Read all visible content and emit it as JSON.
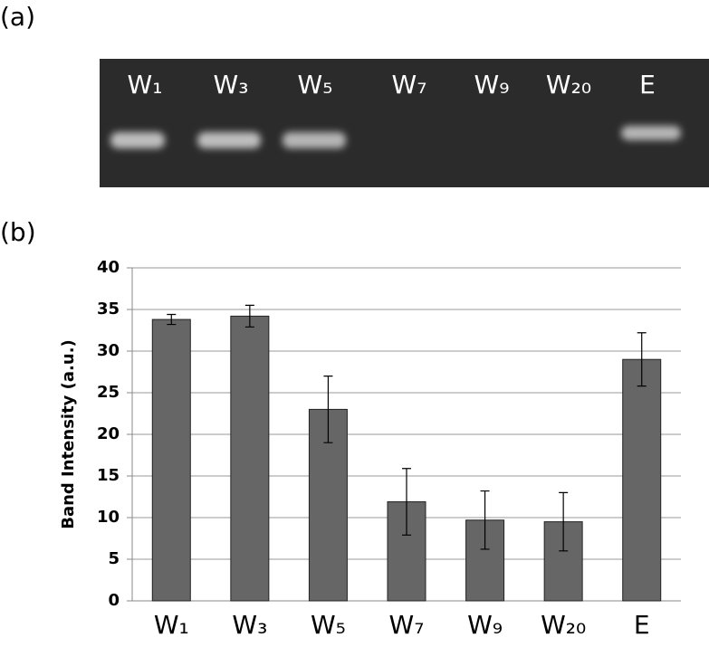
{
  "panel_labels": [
    "(a)",
    "(b)"
  ],
  "gel": {
    "lanes": [
      "W₁",
      "W₃",
      "W₅",
      "W₇",
      "W₉",
      "W₂₀",
      "E"
    ]
  },
  "chart_data": {
    "type": "bar",
    "y_label": "Band Intensity (a.u.)",
    "categories": [
      "W₁",
      "W₃",
      "W₅",
      "W₇",
      "W₉",
      "W₂₀",
      "E"
    ],
    "values": [
      33.8,
      34.2,
      23,
      11.9,
      9.7,
      9.5,
      29
    ],
    "errors": [
      0.6,
      1.3,
      4,
      4,
      3.5,
      3.5,
      3.2
    ],
    "color": "#666666",
    "ylim": [
      0,
      40
    ],
    "yticks": [
      0,
      5,
      10,
      15,
      20,
      25,
      30,
      35,
      40
    ],
    "grid": true
  }
}
